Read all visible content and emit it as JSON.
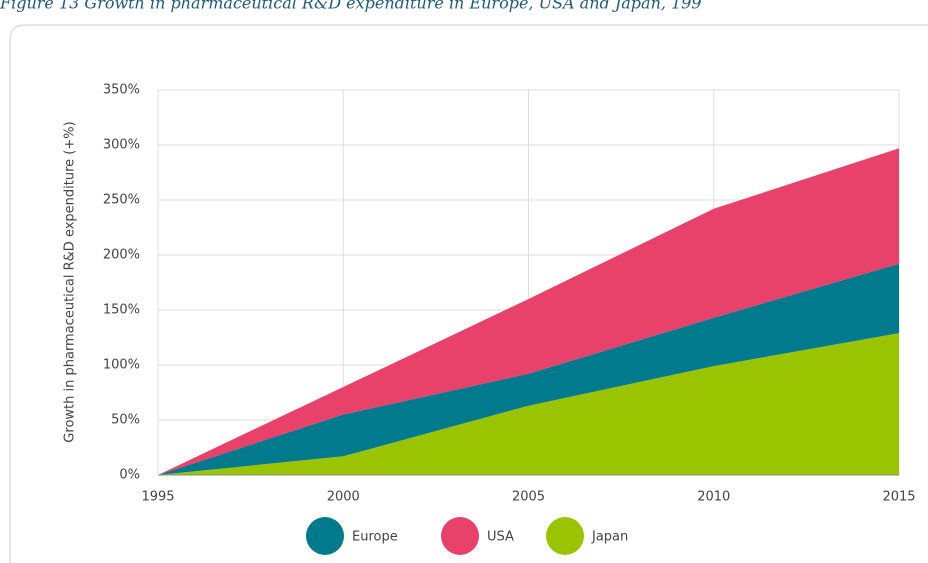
{
  "chart_data": {
    "type": "stacked-area",
    "title": "Figure 13 Growth in pharmaceutical R&D expenditure in Europe, USA and Japan, 199",
    "y_label": "Growth in pharmaceutical  R&D expenditure  (+%)",
    "x": [
      1995,
      2000,
      2005,
      2010,
      2015
    ],
    "series": [
      {
        "name": "Japan",
        "color": "#9bc400",
        "values": [
          0,
          17,
          63,
          99,
          129
        ]
      },
      {
        "name": "Europe",
        "color": "#007a8c",
        "values": [
          0,
          38,
          29,
          44,
          63
        ]
      },
      {
        "name": "USA",
        "color": "#e8416a",
        "values": [
          0,
          25,
          68,
          99,
          105
        ]
      }
    ],
    "legend_order": [
      "Europe",
      "USA",
      "Japan"
    ],
    "xlim": [
      1995,
      2015
    ],
    "xticks": [
      1995,
      2000,
      2005,
      2010,
      2015
    ],
    "ylim": [
      0,
      350
    ],
    "yticks": [
      {
        "value": 0,
        "label": "0%"
      },
      {
        "value": 50,
        "label": "50%"
      },
      {
        "value": 100,
        "label": "100%"
      },
      {
        "value": 150,
        "label": "150%"
      },
      {
        "value": 200,
        "label": "200%"
      },
      {
        "value": 250,
        "label": "250%"
      },
      {
        "value": 300,
        "label": "300%"
      },
      {
        "value": 350,
        "label": "350%"
      }
    ],
    "grid": true
  }
}
